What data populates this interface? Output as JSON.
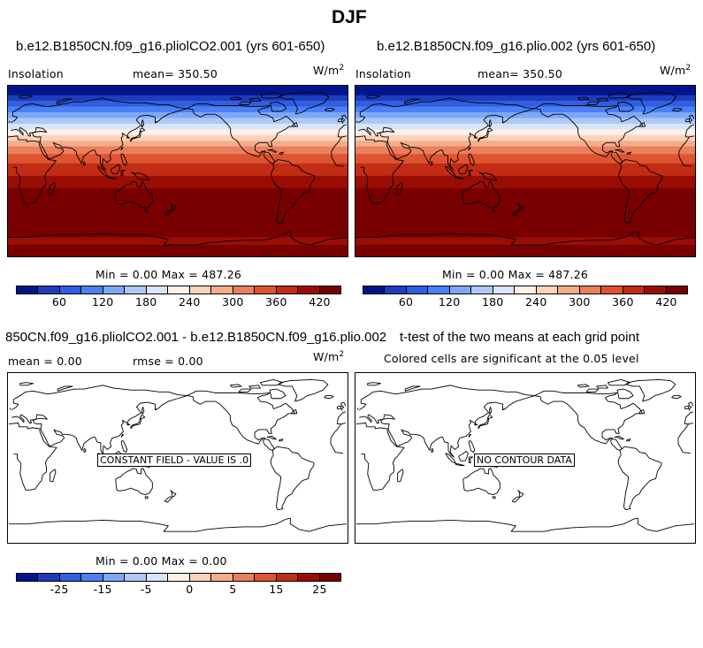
{
  "figure": {
    "title": "DJF"
  },
  "colorbar_colors": [
    "#00158c",
    "#1e3dbc",
    "#2f5ee0",
    "#4a7ff5",
    "#7ea8f7",
    "#aec8f5",
    "#d6e5f8",
    "#fff0e6",
    "#fbd3bb",
    "#f5ac8a",
    "#ec7e5b",
    "#dd5430",
    "#c22b14",
    "#9a0d04",
    "#780000"
  ],
  "panels": {
    "top_left": {
      "title": "b.e12.B1850CN.f09_g16.pliolCO2.001 (yrs 601-650)",
      "variable": "Insolation",
      "mean_text": "mean= 350.50",
      "units_base": "W/m",
      "units_exp": "2",
      "minmax_text": "Min =    0.00 Max = 487.26",
      "colorbar_ticks": [
        "60",
        "120",
        "180",
        "240",
        "300",
        "360",
        "420"
      ]
    },
    "top_right": {
      "title": "b.e12.B1850CN.f09_g16.plio.002 (yrs 601-650)",
      "variable": "Insolation",
      "mean_text": "mean= 350.50",
      "units_base": "W/m",
      "units_exp": "2",
      "minmax_text": "Min =    0.00 Max = 487.26",
      "colorbar_ticks": [
        "60",
        "120",
        "180",
        "240",
        "300",
        "360",
        "420"
      ]
    },
    "bottom_left": {
      "title": "850CN.f09_g16.pliolCO2.001 - b.e12.B1850CN.f09_g16.plio.002",
      "mean_text": "mean =    0.00",
      "rmse_text": "rmse =    0.00",
      "units_base": "W/m",
      "units_exp": "2",
      "message": "CONSTANT FIELD - VALUE IS .0",
      "minmax_text": "Min =    0.00 Max =    0.00",
      "colorbar_ticks": [
        "-25",
        "-15",
        "-5",
        "0",
        "5",
        "15",
        "25"
      ]
    },
    "bottom_right": {
      "title": "t-test of the two means at each grid point",
      "subtitle": "Colored cells are significant at the 0.05 level",
      "message": "NO CONTOUR DATA"
    }
  },
  "insolation_bands": [
    {
      "lat_top": 90,
      "lat_bottom": 80,
      "color": "#00158c"
    },
    {
      "lat_top": 80,
      "lat_bottom": 74,
      "color": "#1e3dbc"
    },
    {
      "lat_top": 74,
      "lat_bottom": 68,
      "color": "#2f5ee0"
    },
    {
      "lat_top": 68,
      "lat_bottom": 62,
      "color": "#4a7ff5"
    },
    {
      "lat_top": 62,
      "lat_bottom": 56,
      "color": "#7ea8f7"
    },
    {
      "lat_top": 56,
      "lat_bottom": 50,
      "color": "#aec8f5"
    },
    {
      "lat_top": 50,
      "lat_bottom": 44,
      "color": "#d6e5f8"
    },
    {
      "lat_top": 44,
      "lat_bottom": 38,
      "color": "#fff0e6"
    },
    {
      "lat_top": 38,
      "lat_bottom": 32,
      "color": "#fbd3bb"
    },
    {
      "lat_top": 32,
      "lat_bottom": 26,
      "color": "#f5ac8a"
    },
    {
      "lat_top": 26,
      "lat_bottom": 18,
      "color": "#ec7e5b"
    },
    {
      "lat_top": 18,
      "lat_bottom": 8,
      "color": "#dd5430"
    },
    {
      "lat_top": 8,
      "lat_bottom": -5,
      "color": "#c22b14"
    },
    {
      "lat_top": -5,
      "lat_bottom": -18,
      "color": "#9a0d04"
    },
    {
      "lat_top": -18,
      "lat_bottom": -70,
      "color": "#780000"
    },
    {
      "lat_top": -70,
      "lat_bottom": -78,
      "color": "#9a0d04"
    },
    {
      "lat_top": -78,
      "lat_bottom": -90,
      "color": "#780000"
    }
  ]
}
